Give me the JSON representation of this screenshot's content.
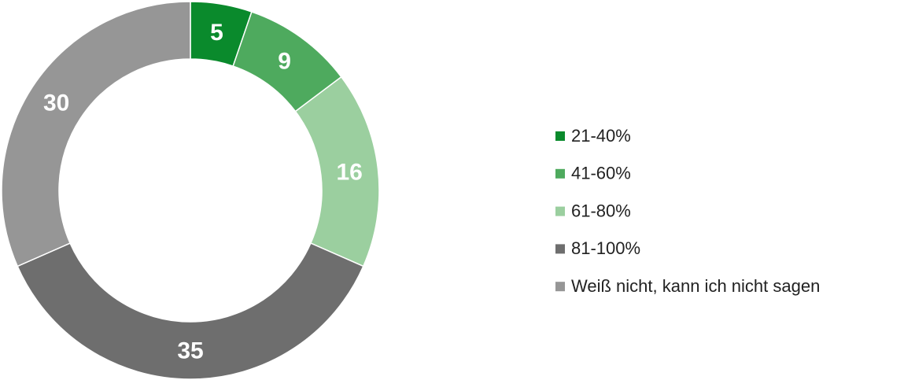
{
  "chart_data": {
    "type": "donut",
    "categories": [
      "21-40%",
      "41-60%",
      "61-80%",
      "81-100%",
      "Weiß nicht, kann ich nicht sagen"
    ],
    "values": [
      5,
      9,
      16,
      35,
      30
    ],
    "colors": [
      "#0a8a2c",
      "#4eaa5e",
      "#9bcf9f",
      "#6e6e6e",
      "#969696"
    ],
    "legend": "right"
  }
}
